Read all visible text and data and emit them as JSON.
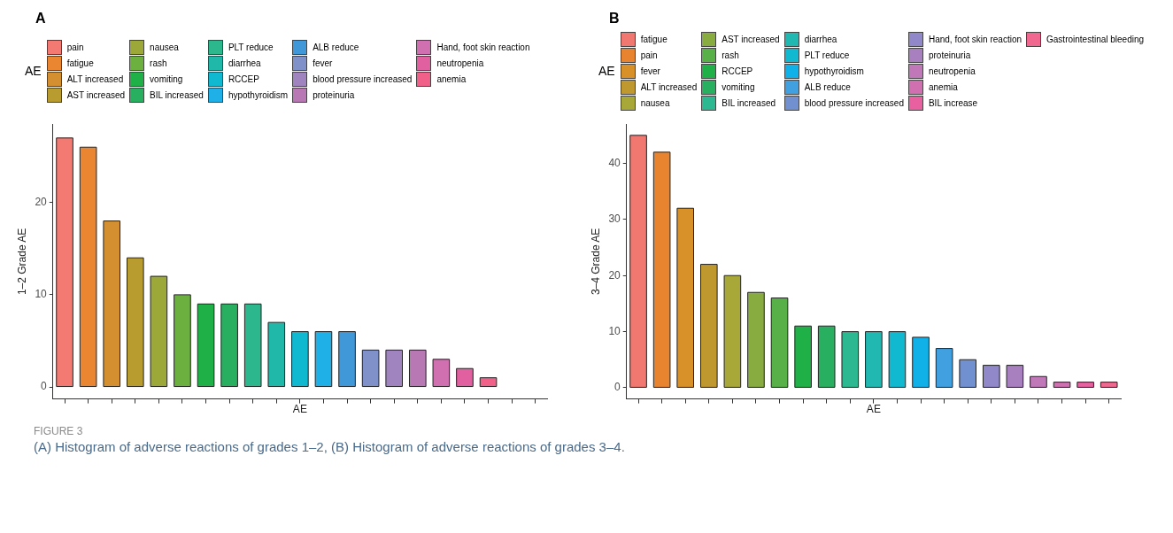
{
  "chart_data": [
    {
      "type": "bar",
      "title": "A",
      "legend_title": "AE",
      "xlabel": "AE",
      "ylabel": "1–2 Grade AE",
      "legend": "top",
      "tick_labels": "y",
      "grid": false,
      "ylim": [
        -1.3,
        28.5
      ],
      "yticks": [
        0,
        10,
        20
      ],
      "categories": [
        null,
        null,
        null,
        null,
        null,
        null,
        null,
        null,
        null,
        null,
        null,
        null,
        null,
        null,
        null,
        null,
        null,
        null,
        null,
        null,
        null
      ],
      "series": [
        {
          "name": "pain",
          "color": "#f27a72",
          "values": [
            27,
            null,
            null,
            null,
            null,
            null,
            null,
            null,
            null,
            null,
            null,
            null,
            null,
            null,
            null,
            null,
            null,
            null,
            null,
            null,
            null
          ]
        },
        {
          "name": "fatigue",
          "color": "#ea8632",
          "values": [
            null,
            26,
            null,
            null,
            null,
            null,
            null,
            null,
            null,
            null,
            null,
            null,
            null,
            null,
            null,
            null,
            null,
            null,
            null,
            null,
            null
          ]
        },
        {
          "name": "ALT increased",
          "color": "#d49030",
          "values": [
            null,
            null,
            18,
            null,
            null,
            null,
            null,
            null,
            null,
            null,
            null,
            null,
            null,
            null,
            null,
            null,
            null,
            null,
            null,
            null,
            null
          ]
        },
        {
          "name": "AST increased",
          "color": "#b89c30",
          "values": [
            null,
            null,
            null,
            14,
            null,
            null,
            null,
            null,
            null,
            null,
            null,
            null,
            null,
            null,
            null,
            null,
            null,
            null,
            null,
            null,
            null
          ]
        },
        {
          "name": "nausea",
          "color": "#9ca838",
          "values": [
            null,
            null,
            null,
            null,
            12,
            null,
            null,
            null,
            null,
            null,
            null,
            null,
            null,
            null,
            null,
            null,
            null,
            null,
            null,
            null,
            null
          ]
        },
        {
          "name": "rash",
          "color": "#6cb040",
          "values": [
            null,
            null,
            null,
            null,
            null,
            10,
            null,
            null,
            null,
            null,
            null,
            null,
            null,
            null,
            null,
            null,
            null,
            null,
            null,
            null,
            null
          ]
        },
        {
          "name": "vomiting",
          "color": "#20b048",
          "values": [
            null,
            null,
            null,
            null,
            null,
            null,
            9,
            null,
            null,
            null,
            null,
            null,
            null,
            null,
            null,
            null,
            null,
            null,
            null,
            null,
            null
          ]
        },
        {
          "name": "BIL increased",
          "color": "#28b060",
          "values": [
            null,
            null,
            null,
            null,
            null,
            null,
            null,
            9,
            null,
            null,
            null,
            null,
            null,
            null,
            null,
            null,
            null,
            null,
            null,
            null,
            null
          ]
        },
        {
          "name": "PLT reduce",
          "color": "#2cb88c",
          "values": [
            null,
            null,
            null,
            null,
            null,
            null,
            null,
            null,
            9,
            null,
            null,
            null,
            null,
            null,
            null,
            null,
            null,
            null,
            null,
            null,
            null
          ]
        },
        {
          "name": "diarrhea",
          "color": "#20b8a8",
          "values": [
            null,
            null,
            null,
            null,
            null,
            null,
            null,
            null,
            null,
            7,
            null,
            null,
            null,
            null,
            null,
            null,
            null,
            null,
            null,
            null,
            null
          ]
        },
        {
          "name": "RCCEP",
          "color": "#10b8d0",
          "values": [
            null,
            null,
            null,
            null,
            null,
            null,
            null,
            null,
            null,
            null,
            6,
            null,
            null,
            null,
            null,
            null,
            null,
            null,
            null,
            null,
            null
          ]
        },
        {
          "name": "hypothyroidism",
          "color": "#20b0e8",
          "values": [
            null,
            null,
            null,
            null,
            null,
            null,
            null,
            null,
            null,
            null,
            null,
            6,
            null,
            null,
            null,
            null,
            null,
            null,
            null,
            null,
            null
          ]
        },
        {
          "name": "ALB reduce",
          "color": "#4098d8",
          "values": [
            null,
            null,
            null,
            null,
            null,
            null,
            null,
            null,
            null,
            null,
            null,
            null,
            6,
            null,
            null,
            null,
            null,
            null,
            null,
            null,
            null
          ]
        },
        {
          "name": "fever",
          "color": "#8090c8",
          "values": [
            null,
            null,
            null,
            null,
            null,
            null,
            null,
            null,
            null,
            null,
            null,
            null,
            null,
            4,
            null,
            null,
            null,
            null,
            null,
            null,
            null
          ]
        },
        {
          "name": "blood pressure increased",
          "color": "#a084c0",
          "values": [
            null,
            null,
            null,
            null,
            null,
            null,
            null,
            null,
            null,
            null,
            null,
            null,
            null,
            null,
            4,
            null,
            null,
            null,
            null,
            null,
            null
          ]
        },
        {
          "name": "proteinuria",
          "color": "#b878b4",
          "values": [
            null,
            null,
            null,
            null,
            null,
            null,
            null,
            null,
            null,
            null,
            null,
            null,
            null,
            null,
            null,
            4,
            null,
            null,
            null,
            null,
            null
          ]
        },
        {
          "name": "Hand, foot skin reaction",
          "color": "#d070b0",
          "values": [
            null,
            null,
            null,
            null,
            null,
            null,
            null,
            null,
            null,
            null,
            null,
            null,
            null,
            null,
            null,
            null,
            3,
            null,
            null,
            null,
            null
          ]
        },
        {
          "name": "neutropenia",
          "color": "#e060a0",
          "values": [
            null,
            null,
            null,
            null,
            null,
            null,
            null,
            null,
            null,
            null,
            null,
            null,
            null,
            null,
            null,
            null,
            null,
            2,
            null,
            null,
            null
          ]
        },
        {
          "name": "anemia",
          "color": "#f06088",
          "values": [
            null,
            null,
            null,
            null,
            null,
            null,
            null,
            null,
            null,
            null,
            null,
            null,
            null,
            null,
            null,
            null,
            null,
            null,
            1,
            null,
            null
          ]
        }
      ],
      "annotations": [
        "FIGURE 3",
        "(A) Histogram of adverse reactions of grades 1–2, (B) Histogram of adverse reactions of grades 3–4."
      ]
    },
    {
      "type": "bar",
      "title": "B",
      "legend_title": "AE",
      "xlabel": "AE",
      "ylabel": "3–4 Grade AE",
      "legend": "top",
      "tick_labels": "y",
      "grid": false,
      "ylim": [
        -2,
        47
      ],
      "yticks": [
        0,
        10,
        20,
        30,
        40
      ],
      "categories": [
        null,
        null,
        null,
        null,
        null,
        null,
        null,
        null,
        null,
        null,
        null,
        null,
        null,
        null,
        null,
        null,
        null,
        null,
        null,
        null,
        null
      ],
      "series": [
        {
          "name": "fatigue",
          "color": "#f07870",
          "values": [
            45,
            null,
            null,
            null,
            null,
            null,
            null,
            null,
            null,
            null,
            null,
            null,
            null,
            null,
            null,
            null,
            null,
            null,
            null,
            null,
            null
          ]
        },
        {
          "name": "pain",
          "color": "#e88430",
          "values": [
            null,
            42,
            null,
            null,
            null,
            null,
            null,
            null,
            null,
            null,
            null,
            null,
            null,
            null,
            null,
            null,
            null,
            null,
            null,
            null,
            null
          ]
        },
        {
          "name": "fever",
          "color": "#d89028",
          "values": [
            null,
            null,
            32,
            null,
            null,
            null,
            null,
            null,
            null,
            null,
            null,
            null,
            null,
            null,
            null,
            null,
            null,
            null,
            null,
            null,
            null
          ]
        },
        {
          "name": "ALT increased",
          "color": "#c09830",
          "values": [
            null,
            null,
            null,
            22,
            null,
            null,
            null,
            null,
            null,
            null,
            null,
            null,
            null,
            null,
            null,
            null,
            null,
            null,
            null,
            null,
            null
          ]
        },
        {
          "name": "nausea",
          "color": "#a8a838",
          "values": [
            null,
            null,
            null,
            null,
            20,
            null,
            null,
            null,
            null,
            null,
            null,
            null,
            null,
            null,
            null,
            null,
            null,
            null,
            null,
            null,
            null
          ]
        },
        {
          "name": "AST increased",
          "color": "#88ac40",
          "values": [
            null,
            null,
            null,
            null,
            null,
            17,
            null,
            null,
            null,
            null,
            null,
            null,
            null,
            null,
            null,
            null,
            null,
            null,
            null,
            null,
            null
          ]
        },
        {
          "name": "rash",
          "color": "#58b048",
          "values": [
            null,
            null,
            null,
            null,
            null,
            null,
            16,
            null,
            null,
            null,
            null,
            null,
            null,
            null,
            null,
            null,
            null,
            null,
            null,
            null,
            null
          ]
        },
        {
          "name": "RCCEP",
          "color": "#20b048",
          "values": [
            null,
            null,
            null,
            null,
            null,
            null,
            null,
            11,
            null,
            null,
            null,
            null,
            null,
            null,
            null,
            null,
            null,
            null,
            null,
            null,
            null
          ]
        },
        {
          "name": "vomiting",
          "color": "#28b060",
          "values": [
            null,
            null,
            null,
            null,
            null,
            null,
            null,
            null,
            11,
            null,
            null,
            null,
            null,
            null,
            null,
            null,
            null,
            null,
            null,
            null,
            null
          ]
        },
        {
          "name": "BIL increased",
          "color": "#2cb890",
          "values": [
            null,
            null,
            null,
            null,
            null,
            null,
            null,
            null,
            null,
            10,
            null,
            null,
            null,
            null,
            null,
            null,
            null,
            null,
            null,
            null,
            null
          ]
        },
        {
          "name": "diarrhea",
          "color": "#20b8b0",
          "values": [
            null,
            null,
            null,
            null,
            null,
            null,
            null,
            null,
            null,
            null,
            10,
            null,
            null,
            null,
            null,
            null,
            null,
            null,
            null,
            null,
            null
          ]
        },
        {
          "name": "PLT reduce",
          "color": "#10b8d0",
          "values": [
            null,
            null,
            null,
            null,
            null,
            null,
            null,
            null,
            null,
            null,
            null,
            10,
            null,
            null,
            null,
            null,
            null,
            null,
            null,
            null,
            null
          ]
        },
        {
          "name": "hypothyroidism",
          "color": "#10b0e8",
          "values": [
            null,
            null,
            null,
            null,
            null,
            null,
            null,
            null,
            null,
            null,
            null,
            null,
            9,
            null,
            null,
            null,
            null,
            null,
            null,
            null,
            null
          ]
        },
        {
          "name": "ALB reduce",
          "color": "#40a0e0",
          "values": [
            null,
            null,
            null,
            null,
            null,
            null,
            null,
            null,
            null,
            null,
            null,
            null,
            null,
            7,
            null,
            null,
            null,
            null,
            null,
            null,
            null
          ]
        },
        {
          "name": "blood pressure increased",
          "color": "#7090d0",
          "values": [
            null,
            null,
            null,
            null,
            null,
            null,
            null,
            null,
            null,
            null,
            null,
            null,
            null,
            null,
            5,
            null,
            null,
            null,
            null,
            null,
            null
          ]
        },
        {
          "name": "Hand, foot skin reaction",
          "color": "#9088c8",
          "values": [
            null,
            null,
            null,
            null,
            null,
            null,
            null,
            null,
            null,
            null,
            null,
            null,
            null,
            null,
            null,
            4,
            null,
            null,
            null,
            null,
            null
          ]
        },
        {
          "name": "proteinuria",
          "color": "#a880c0",
          "values": [
            null,
            null,
            null,
            null,
            null,
            null,
            null,
            null,
            null,
            null,
            null,
            null,
            null,
            null,
            null,
            null,
            4,
            null,
            null,
            null,
            null
          ]
        },
        {
          "name": "neutropenia",
          "color": "#c078b8",
          "values": [
            null,
            null,
            null,
            null,
            null,
            null,
            null,
            null,
            null,
            null,
            null,
            null,
            null,
            null,
            null,
            null,
            null,
            2,
            null,
            null,
            null
          ]
        },
        {
          "name": "anemia",
          "color": "#d070b0",
          "values": [
            null,
            null,
            null,
            null,
            null,
            null,
            null,
            null,
            null,
            null,
            null,
            null,
            null,
            null,
            null,
            null,
            null,
            null,
            1,
            null,
            null
          ]
        },
        {
          "name": "BIL increase",
          "color": "#e860a0",
          "values": [
            null,
            null,
            null,
            null,
            null,
            null,
            null,
            null,
            null,
            null,
            null,
            null,
            null,
            null,
            null,
            null,
            null,
            null,
            null,
            1,
            null
          ]
        },
        {
          "name": "Gastrointestinal bleeding",
          "color": "#f06890",
          "values": [
            null,
            null,
            null,
            null,
            null,
            null,
            null,
            null,
            null,
            null,
            null,
            null,
            null,
            null,
            null,
            null,
            null,
            null,
            null,
            null,
            1
          ]
        }
      ]
    }
  ]
}
